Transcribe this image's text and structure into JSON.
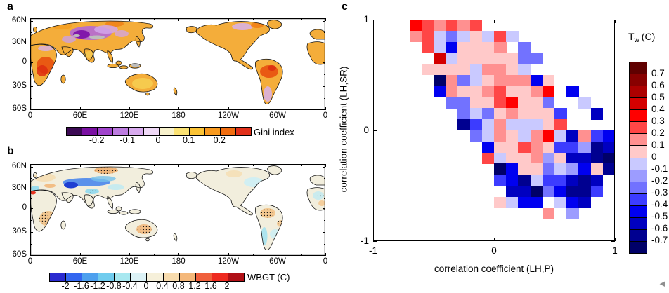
{
  "figure": {
    "background": "#ffffff",
    "corner_glyph": "◄",
    "panels": [
      {
        "label": "a",
        "type": "world-map",
        "lat_ticks": [
          "60N",
          "30N",
          "0",
          "30S",
          "60S"
        ],
        "lon_ticks": [
          "0",
          "60E",
          "120E",
          "180",
          "120W",
          "60W",
          "0"
        ],
        "colorbar": {
          "title": "Gini index",
          "labels": [
            "-0.2",
            "-0.1",
            "0",
            "0.1",
            "0.2"
          ],
          "colors": [
            "#3c0a54",
            "#7a10a2",
            "#a044cc",
            "#bd7ce0",
            "#d8aaee",
            "#efd9f6",
            "#f7f1cc",
            "#fbe273",
            "#fbc335",
            "#f89a1f",
            "#f06d10",
            "#e1301a"
          ]
        }
      },
      {
        "label": "b",
        "type": "world-map",
        "lat_ticks": [
          "60N",
          "30N",
          "0",
          "30S",
          "60S"
        ],
        "lon_ticks": [
          "0",
          "60E",
          "120E",
          "180",
          "120W",
          "60W",
          "0"
        ],
        "colorbar": {
          "title": "WBGT (C)",
          "labels": [
            "-2",
            "-1.6",
            "-1.2",
            "-0.8",
            "-0.4",
            "0",
            "0.4",
            "0.8",
            "1.2",
            "1.6",
            "2"
          ],
          "colors": [
            "#2a2ad0",
            "#3366f0",
            "#4da0ee",
            "#70ccee",
            "#a8e8f0",
            "#dcf2f6",
            "#f6f0da",
            "#f8dcae",
            "#f4b87a",
            "#f0603c",
            "#ee2a20",
            "#b01016"
          ]
        }
      },
      {
        "label": "c",
        "type": "heatmap",
        "xlabel": "correlation coefficient (LH,P)",
        "ylabel": "correlation coefficient (LH,SR)",
        "x_ticks": [
          "-1",
          "0",
          "1"
        ],
        "y_ticks": [
          "1",
          "0",
          "-1"
        ],
        "colorbar": {
          "title_main": "T",
          "title_sub": "w",
          "title_unit": "(C)",
          "labels": [
            "0.7",
            "0.6",
            "0.5",
            "0.4",
            "0.3",
            "0.2",
            "0.1",
            "0",
            "-0.1",
            "-0.2",
            "-0.3",
            "-0.4",
            "-0.5",
            "-0.6",
            "-0.7"
          ],
          "colors_top_to_bottom": [
            "#600000",
            "#880000",
            "#ac0000",
            "#d40000",
            "#ff0000",
            "#ff4646",
            "#ff9090",
            "#ffc9c9",
            "#c9c9ff",
            "#9c9cff",
            "#7272ff",
            "#3c3cff",
            "#0000f0",
            "#0000c0",
            "#000090",
            "#000068"
          ]
        }
      }
    ]
  },
  "chart_data": [
    {
      "panel": "a",
      "type": "heatmap",
      "subtype": "global-map",
      "title": "Gini index",
      "lat_tick_labels": [
        "60N",
        "30N",
        "0",
        "30S",
        "60S"
      ],
      "lon_tick_labels": [
        "0",
        "60E",
        "120E",
        "180",
        "120W",
        "60W",
        "0"
      ],
      "colorbar": {
        "tick_values": [
          -0.2,
          -0.1,
          0,
          0.1,
          0.2
        ],
        "segment_step": 0.05,
        "range": [
          -0.3,
          0.3
        ],
        "colors": [
          "#3c0a54",
          "#7a10a2",
          "#a044cc",
          "#bd7ce0",
          "#d8aaee",
          "#efd9f6",
          "#f7f1cc",
          "#fbe273",
          "#fbc335",
          "#f89a1f",
          "#f06d10",
          "#e1301a"
        ]
      },
      "description": "Pacific-centered global land map of Gini index values: most land orange/yellow (positive), strongest red-orange over central Africa and Amazon; purple negative band across central Asia with lavender patches over northern North America, north Africa, southern South America and Australia; small grey no-data patches near Tibet and New Guinea."
    },
    {
      "panel": "b",
      "type": "heatmap",
      "subtype": "global-map",
      "title": "WBGT (C)",
      "lat_tick_labels": [
        "60N",
        "30N",
        "0",
        "30S",
        "60S"
      ],
      "lon_tick_labels": [
        "0",
        "60E",
        "120E",
        "180",
        "120W",
        "60W",
        "0"
      ],
      "colorbar": {
        "tick_values": [
          -2,
          -1.6,
          -1.2,
          -0.8,
          -0.4,
          0,
          0.4,
          0.8,
          1.2,
          1.6,
          2
        ],
        "segment_step": 0.4,
        "range": [
          -2.4,
          2.4
        ],
        "colors": [
          "#2a2ad0",
          "#3366f0",
          "#4da0ee",
          "#70ccee",
          "#a8e8f0",
          "#dcf2f6",
          "#f6f0da",
          "#f8dcae",
          "#f4b87a",
          "#f0603c",
          "#ee2a20",
          "#b01016"
        ]
      },
      "description": "Pacific-centered global land map of WBGT change: mostly pale cream/tan; dark blue band over Middle East into central Asia, light blue over north India, eastern North America and Chilean coast; stippled orange patches over Siberia, southern Africa, central Australia and the Amazon; small red spot over northwest Africa."
    },
    {
      "panel": "c",
      "type": "heatmap",
      "x": {
        "label": "correlation coefficient (LH,P)",
        "range": [
          -1,
          1
        ],
        "ticks": [
          -1,
          0,
          1
        ]
      },
      "y": {
        "label": "correlation coefficient (LH,SR)",
        "range": [
          -1,
          1
        ],
        "ticks": [
          -1,
          0,
          1
        ]
      },
      "value_label": "Tw (C)",
      "value_ticks": [
        0.7,
        0.6,
        0.5,
        0.4,
        0.3,
        0.2,
        0.1,
        0,
        -0.1,
        -0.2,
        -0.3,
        -0.4,
        -0.5,
        -0.6,
        -0.7
      ],
      "cell_size": 0.1,
      "grid_note": "rows ordered top (SR correlation = 1) to bottom (-1); columns left (P correlation = -1) to right (1); null = no data (white)",
      "grid": [
        [
          null,
          null,
          null,
          0.35,
          0.25,
          0.15,
          0.25,
          0.15,
          0.25,
          null,
          null,
          null,
          null,
          null,
          null,
          null,
          null,
          null,
          null,
          null
        ],
        [
          null,
          null,
          null,
          0.15,
          0.25,
          -0.05,
          -0.25,
          -0.05,
          0.05,
          -0.05,
          0.25,
          -0.05,
          null,
          null,
          null,
          null,
          null,
          null,
          null,
          null
        ],
        [
          null,
          null,
          null,
          null,
          0.25,
          -0.05,
          -0.45,
          0.05,
          0.05,
          0.05,
          0.15,
          null,
          -0.25,
          null,
          null,
          null,
          null,
          null,
          null,
          null
        ],
        [
          null,
          null,
          null,
          null,
          null,
          0.45,
          -0.05,
          0.05,
          0.05,
          0.05,
          0.05,
          0.05,
          -0.25,
          -0.25,
          null,
          null,
          null,
          null,
          null,
          null
        ],
        [
          null,
          null,
          null,
          null,
          0.05,
          0.05,
          0.05,
          0.05,
          -0.05,
          0.15,
          0.15,
          0.05,
          -0.05,
          null,
          null,
          null,
          null,
          null,
          null,
          null
        ],
        [
          null,
          null,
          null,
          null,
          null,
          -0.75,
          0.15,
          -0.25,
          -0.05,
          0.05,
          0.15,
          0.15,
          0.15,
          -0.45,
          0.05,
          null,
          null,
          null,
          null,
          null
        ],
        [
          null,
          null,
          null,
          null,
          null,
          -0.45,
          0.15,
          0.05,
          0.05,
          0.15,
          0.25,
          0.05,
          0.05,
          0.15,
          0.35,
          null,
          -0.45,
          null,
          null,
          null
        ],
        [
          null,
          null,
          null,
          null,
          null,
          null,
          -0.25,
          -0.25,
          0.05,
          0.05,
          0.25,
          0.35,
          0.05,
          0.05,
          -0.25,
          null,
          null,
          -0.05,
          null,
          null
        ],
        [
          null,
          null,
          null,
          null,
          null,
          null,
          null,
          -0.25,
          -0.05,
          -0.25,
          0.05,
          0.15,
          0.05,
          0.05,
          0.05,
          -0.35,
          null,
          null,
          -0.55,
          null
        ],
        [
          null,
          null,
          null,
          null,
          null,
          null,
          null,
          -0.65,
          -0.35,
          -0.05,
          0.15,
          -0.05,
          -0.05,
          -0.05,
          0.05,
          0.25,
          null,
          null,
          null,
          null
        ],
        [
          null,
          null,
          null,
          null,
          null,
          null,
          null,
          null,
          -0.25,
          -0.05,
          0.15,
          0.05,
          -0.05,
          0.15,
          0.35,
          -0.05,
          -0.55,
          0.15,
          -0.35,
          -0.45
        ],
        [
          null,
          null,
          null,
          null,
          null,
          null,
          null,
          null,
          null,
          -0.45,
          0.05,
          0.05,
          0.25,
          0.15,
          0.05,
          -0.35,
          -0.35,
          -0.15,
          -0.65,
          -0.55
        ],
        [
          null,
          null,
          null,
          null,
          null,
          null,
          null,
          null,
          null,
          0.25,
          -0.05,
          0.05,
          0.05,
          0.15,
          -0.15,
          0.05,
          -0.55,
          -0.55,
          -0.65,
          -0.75
        ],
        [
          null,
          null,
          null,
          null,
          null,
          null,
          null,
          null,
          null,
          null,
          -0.75,
          -0.45,
          0.05,
          0.05,
          -0.25,
          -0.05,
          -0.15,
          -0.45,
          0.05,
          -0.65
        ],
        [
          null,
          null,
          null,
          null,
          null,
          null,
          null,
          null,
          null,
          null,
          -0.35,
          -0.45,
          -0.65,
          -0.05,
          -0.35,
          -0.35,
          -0.55,
          -0.65,
          -0.55,
          null
        ],
        [
          null,
          null,
          null,
          null,
          null,
          null,
          null,
          null,
          null,
          null,
          null,
          -0.55,
          -0.55,
          -0.75,
          -0.25,
          -0.45,
          -0.65,
          -0.65,
          -0.35,
          null
        ],
        [
          null,
          null,
          null,
          null,
          null,
          null,
          null,
          null,
          null,
          null,
          0.05,
          -0.05,
          -0.45,
          -0.45,
          null,
          -0.05,
          -0.45,
          -0.55,
          null,
          null
        ],
        [
          null,
          null,
          null,
          null,
          null,
          null,
          null,
          null,
          null,
          null,
          null,
          null,
          null,
          null,
          0.15,
          null,
          -0.15,
          null,
          null,
          null
        ],
        [
          null,
          null,
          null,
          null,
          null,
          null,
          null,
          null,
          null,
          null,
          null,
          null,
          null,
          null,
          null,
          null,
          null,
          null,
          null,
          null
        ],
        [
          null,
          null,
          null,
          null,
          null,
          null,
          null,
          null,
          null,
          null,
          null,
          null,
          null,
          null,
          null,
          null,
          null,
          null,
          null,
          null
        ]
      ]
    }
  ]
}
